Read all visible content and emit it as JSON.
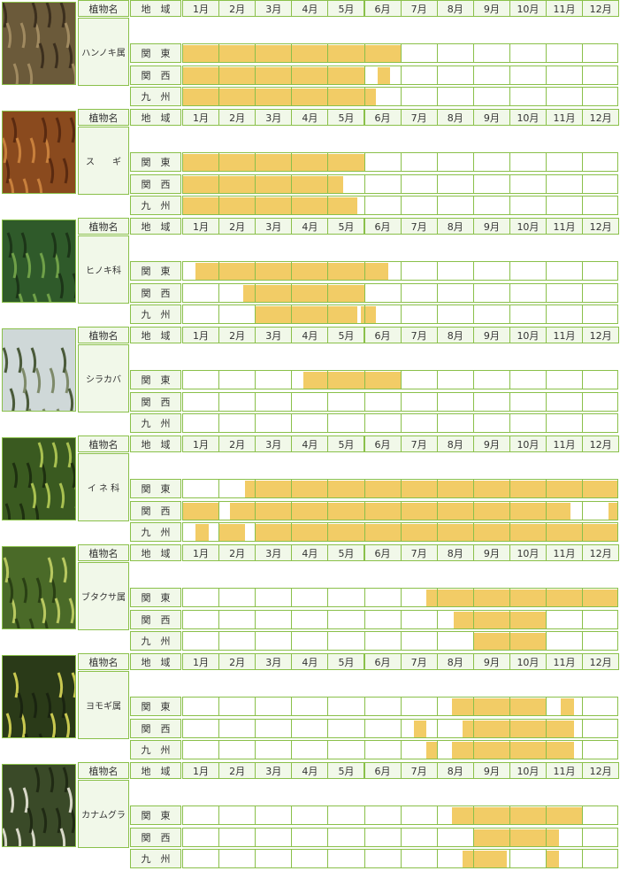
{
  "chart_data": {
    "type": "table",
    "header": {
      "plant_col": "植物名",
      "region_col": "地　域"
    },
    "months": [
      "1月",
      "2月",
      "3月",
      "4月",
      "5月",
      "6月",
      "7月",
      "8月",
      "9月",
      "10月",
      "11月",
      "12月"
    ],
    "regions": [
      "関　東",
      "関　西",
      "九　州"
    ],
    "colors": {
      "bar": "#f2cc66",
      "grid": "#8ac04a",
      "header_bg": "#f1f8e9"
    },
    "plants": [
      {
        "name": "ハンノキ属",
        "photo_icon": "alder-catkin-photo",
        "periods": [
          [
            [
              1.0,
              7.0
            ]
          ],
          [
            [
              1.0,
              6.0
            ],
            [
              6.35,
              6.7
            ]
          ],
          [
            [
              1.0,
              6.3
            ]
          ]
        ]
      },
      {
        "name": "ス　　ギ",
        "photo_icon": "cedar-photo",
        "periods": [
          [
            [
              1.0,
              6.0
            ]
          ],
          [
            [
              1.0,
              5.4
            ]
          ],
          [
            [
              1.0,
              5.8
            ]
          ]
        ]
      },
      {
        "name": "ヒノキ科",
        "photo_icon": "cypress-photo",
        "periods": [
          [
            [
              1.35,
              6.65
            ]
          ],
          [
            [
              2.65,
              6.0
            ]
          ],
          [
            [
              3.0,
              5.8
            ],
            [
              5.9,
              6.3
            ]
          ]
        ]
      },
      {
        "name": "シラカバ",
        "photo_icon": "birch-photo",
        "periods": [
          [
            [
              4.3,
              7.0
            ]
          ],
          [],
          []
        ]
      },
      {
        "name": "イ ネ 科",
        "photo_icon": "grass-photo",
        "periods": [
          [
            [
              2.7,
              13.0
            ]
          ],
          [
            [
              1.0,
              2.0
            ],
            [
              2.3,
              11.65
            ],
            [
              12.7,
              13.0
            ]
          ],
          [
            [
              1.35,
              1.7
            ],
            [
              2.0,
              2.7
            ],
            [
              3.0,
              13.0
            ]
          ]
        ]
      },
      {
        "name": "ブタクサ属",
        "photo_icon": "ragweed-photo",
        "periods": [
          [
            [
              7.7,
              13.0
            ]
          ],
          [
            [
              8.45,
              11.0
            ]
          ],
          [
            [
              9.0,
              11.0
            ]
          ]
        ]
      },
      {
        "name": "ヨモギ属",
        "photo_icon": "mugwort-photo",
        "periods": [
          [
            [
              8.4,
              11.0
            ],
            [
              11.4,
              11.75
            ]
          ],
          [
            [
              7.35,
              7.7
            ],
            [
              8.7,
              11.75
            ]
          ],
          [
            [
              7.7,
              8.0
            ],
            [
              8.4,
              11.75
            ]
          ]
        ]
      },
      {
        "name": "カナムグラ",
        "photo_icon": "hop-photo",
        "periods": [
          [
            [
              8.4,
              12.0
            ]
          ],
          [
            [
              9.0,
              11.35
            ]
          ],
          [
            [
              8.7,
              9.9
            ],
            [
              11.0,
              11.35
            ]
          ]
        ]
      }
    ]
  }
}
